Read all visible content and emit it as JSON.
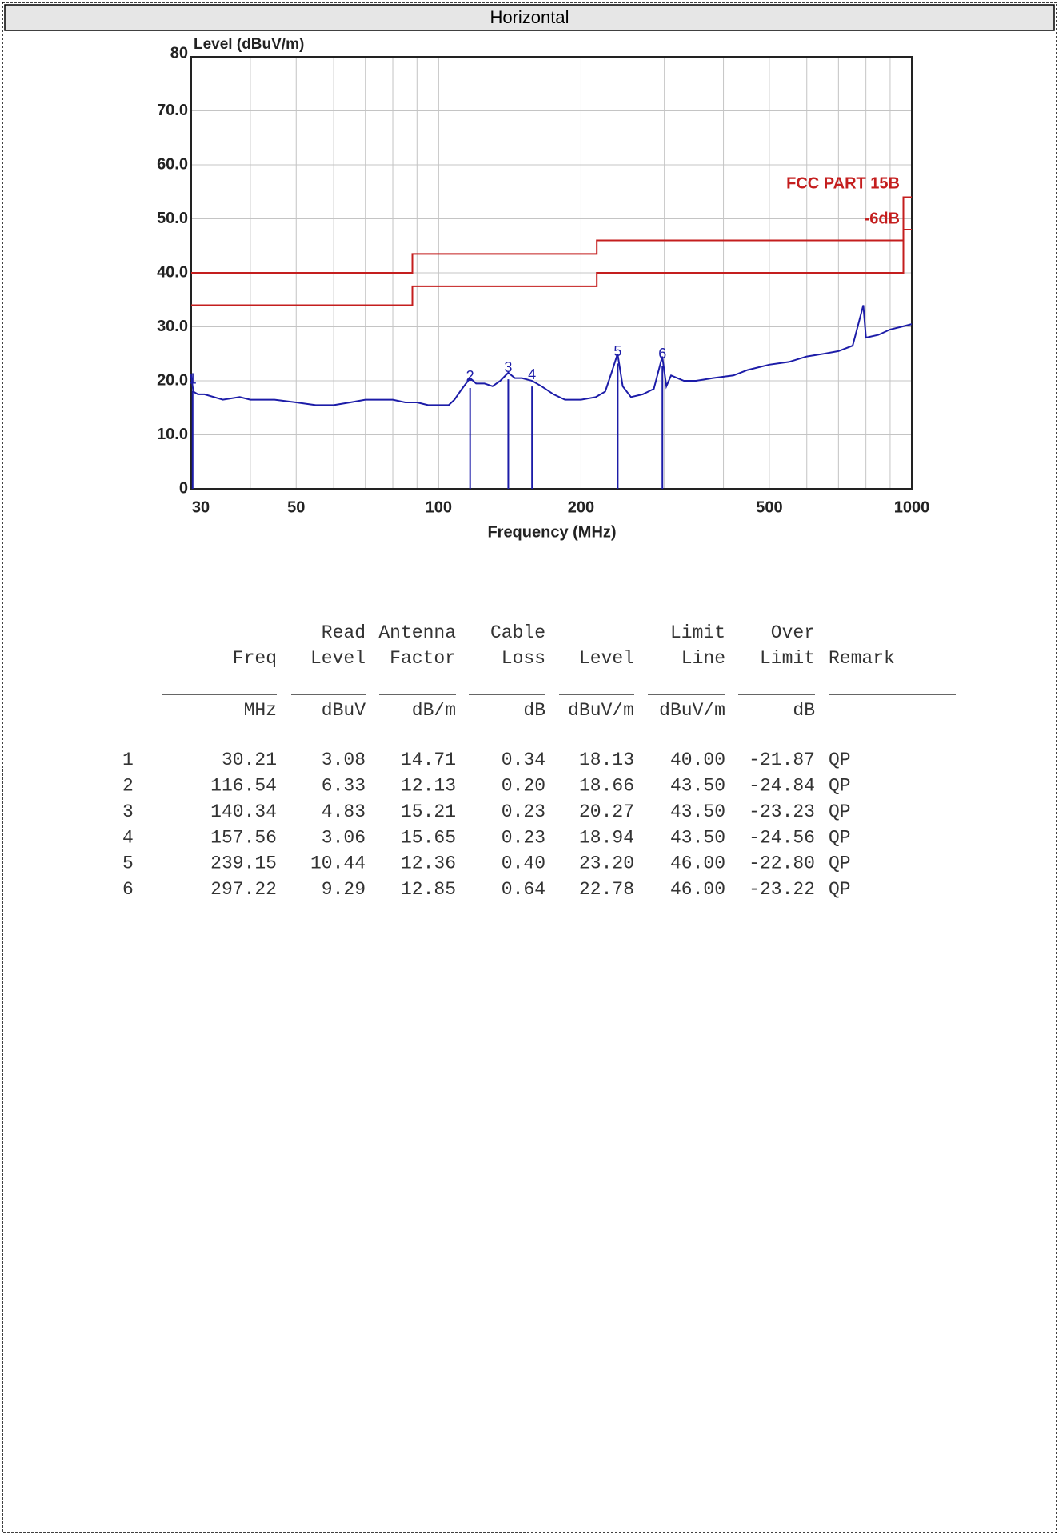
{
  "header": {
    "title": "Horizontal"
  },
  "chart_data": {
    "type": "line",
    "ylabel": "Level (dBuV/m)",
    "xlabel": "Frequency (MHz)",
    "xlog": true,
    "xlim": [
      30,
      1000
    ],
    "ylim": [
      0,
      80
    ],
    "xticks": [
      30,
      50,
      100,
      200,
      500,
      1000
    ],
    "xgrid": [
      30,
      40,
      50,
      60,
      70,
      80,
      90,
      100,
      200,
      300,
      400,
      500,
      600,
      700,
      800,
      900,
      1000
    ],
    "yticks": [
      0,
      {
        "value": 10,
        "label": "10.0"
      },
      {
        "value": 20,
        "label": "20.0"
      },
      {
        "value": 30,
        "label": "30.0"
      },
      {
        "value": 40,
        "label": "40.0"
      },
      {
        "value": 50,
        "label": "50.0"
      },
      {
        "value": 60,
        "label": "60.0"
      },
      {
        "value": 70,
        "label": "70.0"
      },
      80
    ],
    "grid": true,
    "series": [
      {
        "color": "#1c1ca8",
        "x": [
          30,
          30.3,
          31,
          32,
          35,
          38,
          40,
          45,
          50,
          55,
          60,
          65,
          70,
          75,
          80,
          85,
          90,
          95,
          100,
          105,
          108,
          112,
          116.5,
          120,
          125,
          130,
          135,
          140.3,
          145,
          150,
          157.6,
          165,
          175,
          185,
          200,
          215,
          225,
          232,
          239,
          245,
          255,
          270,
          285,
          297,
          303,
          310,
          330,
          350,
          380,
          420,
          450,
          500,
          550,
          600,
          650,
          700,
          750,
          790,
          800,
          850,
          900,
          950,
          1000
        ],
        "values": [
          21,
          18,
          17.5,
          17.5,
          16.5,
          17,
          16.5,
          16.5,
          16,
          15.5,
          15.5,
          16,
          16.5,
          16.5,
          16.5,
          16,
          16,
          15.5,
          15.5,
          15.5,
          16.5,
          18.5,
          20.5,
          19.5,
          19.5,
          19,
          20,
          21.5,
          20.5,
          20.5,
          20,
          19,
          17.5,
          16.5,
          16.5,
          17,
          18,
          21.5,
          25,
          19,
          17,
          17.5,
          18.5,
          24.5,
          19,
          21,
          20,
          20,
          20.5,
          21,
          22,
          23,
          23.5,
          24.5,
          25,
          25.5,
          26.5,
          34,
          28,
          28.5,
          29.5,
          30,
          30.5
        ]
      },
      {
        "name": "FCC PART 15B",
        "color": "#c41e1e",
        "x": [
          30,
          88,
          88,
          216,
          216,
          960,
          960,
          1000
        ],
        "values": [
          40,
          40,
          43.5,
          43.5,
          46,
          46,
          54,
          54
        ]
      },
      {
        "name": "-6dB",
        "color": "#c41e1e",
        "x": [
          30,
          88,
          88,
          216,
          216,
          960,
          960,
          1000
        ],
        "values": [
          34,
          34,
          37.5,
          37.5,
          40,
          40,
          48,
          48
        ]
      }
    ],
    "markers": {
      "color": "#1c1ca8",
      "labels": [
        "1",
        "2",
        "3",
        "4",
        "5",
        "6"
      ],
      "x": [
        30.21,
        116.54,
        140.34,
        157.56,
        239.15,
        297.22
      ],
      "values": [
        18.13,
        18.66,
        20.27,
        18.94,
        23.2,
        22.78
      ]
    }
  },
  "table": {
    "columns": [
      {
        "label": "Freq",
        "unit": "MHz"
      },
      {
        "top": "Read",
        "label": "Level",
        "unit": "dBuV"
      },
      {
        "top": "Antenna",
        "label": "Factor",
        "unit": "dB/m"
      },
      {
        "top": "Cable",
        "label": "Loss",
        "unit": "dB"
      },
      {
        "label": "Level",
        "unit": "dBuV/m"
      },
      {
        "top": "Limit",
        "label": "Line",
        "unit": "dBuV/m"
      },
      {
        "top": "Over",
        "label": "Limit",
        "unit": "dB"
      },
      {
        "label": "Remark"
      }
    ],
    "rows": [
      [
        "1",
        "30.21",
        "3.08",
        "14.71",
        "0.34",
        "18.13",
        "40.00",
        "-21.87",
        "QP"
      ],
      [
        "2",
        "116.54",
        "6.33",
        "12.13",
        "0.20",
        "18.66",
        "43.50",
        "-24.84",
        "QP"
      ],
      [
        "3",
        "140.34",
        "4.83",
        "15.21",
        "0.23",
        "20.27",
        "43.50",
        "-23.23",
        "QP"
      ],
      [
        "4",
        "157.56",
        "3.06",
        "15.65",
        "0.23",
        "18.94",
        "43.50",
        "-24.56",
        "QP"
      ],
      [
        "5",
        "239.15",
        "10.44",
        "12.36",
        "0.40",
        "23.20",
        "46.00",
        "-22.80",
        "QP"
      ],
      [
        "6",
        "297.22",
        "9.29",
        "12.85",
        "0.64",
        "22.78",
        "46.00",
        "-23.22",
        "QP"
      ]
    ]
  }
}
